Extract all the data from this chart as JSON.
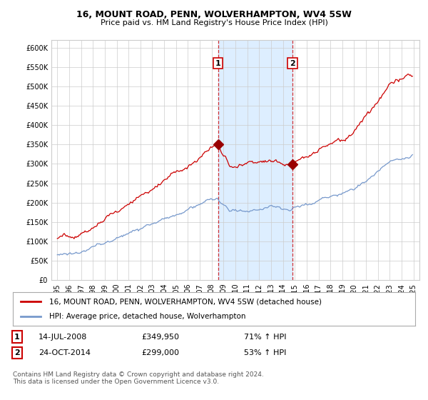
{
  "title": "16, MOUNT ROAD, PENN, WOLVERHAMPTON, WV4 5SW",
  "subtitle": "Price paid vs. HM Land Registry's House Price Index (HPI)",
  "legend_line1": "16, MOUNT ROAD, PENN, WOLVERHAMPTON, WV4 5SW (detached house)",
  "legend_line2": "HPI: Average price, detached house, Wolverhampton",
  "footnote": "Contains HM Land Registry data © Crown copyright and database right 2024.\nThis data is licensed under the Open Government Licence v3.0.",
  "sale1_date": "14-JUL-2008",
  "sale1_price": 349950,
  "sale1_pct": "71% ↑ HPI",
  "sale2_date": "24-OCT-2014",
  "sale2_price": 299000,
  "sale2_pct": "53% ↑ HPI",
  "sale1_year": 2008.54,
  "sale2_year": 2014.81,
  "ylim": [
    0,
    620000
  ],
  "xlim_start": 1994.5,
  "xlim_end": 2025.5,
  "red_color": "#cc0000",
  "blue_color": "#7799cc",
  "shade_color": "#ddeeff",
  "marker_color": "#990000",
  "vline_color": "#cc0000",
  "background_color": "#ffffff",
  "grid_color": "#cccccc"
}
